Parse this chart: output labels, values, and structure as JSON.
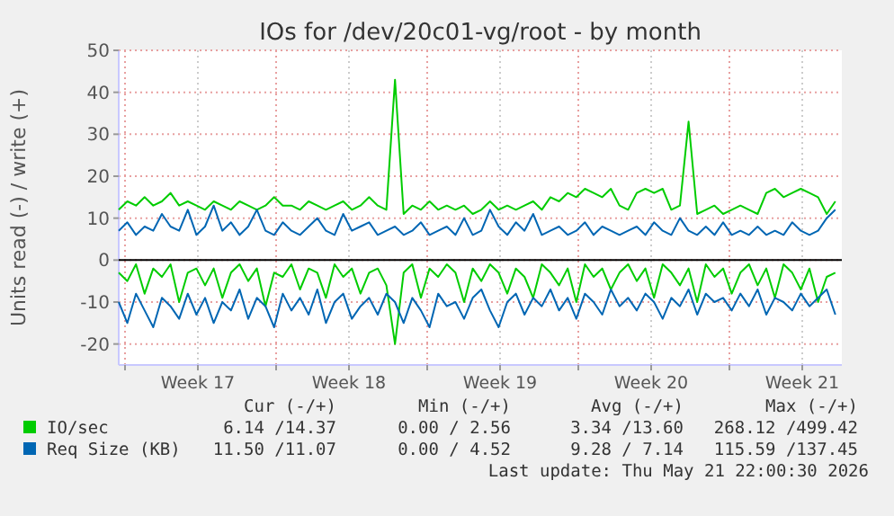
{
  "chart_data": {
    "type": "line",
    "title": "IOs for /dev/20c01-vg/root - by month",
    "ylabel": "Units read (-) / write (+)",
    "x": [
      "2026-04-18T10:00",
      "2026-04-18T19:36",
      "2026-04-19T05:12",
      "2026-04-19T14:48",
      "2026-04-20T00:24",
      "2026-04-20T10:00",
      "2026-04-20T19:36",
      "2026-04-21T05:12",
      "2026-04-21T14:48",
      "2026-04-22T00:24",
      "2026-04-22T10:00",
      "2026-04-22T19:36",
      "2026-04-23T05:12",
      "2026-04-23T14:48",
      "2026-04-24T00:24",
      "2026-04-24T10:00",
      "2026-04-24T19:36",
      "2026-04-25T05:12",
      "2026-04-25T14:48",
      "2026-04-26T00:24",
      "2026-04-26T10:00",
      "2026-04-26T19:36",
      "2026-04-27T05:12",
      "2026-04-27T14:48",
      "2026-04-28T00:24",
      "2026-04-28T10:00",
      "2026-04-28T19:36",
      "2026-04-29T05:12",
      "2026-04-29T14:48",
      "2026-04-30T00:24",
      "2026-04-30T10:00",
      "2026-04-30T19:36",
      "2026-05-01T05:12",
      "2026-05-01T14:48",
      "2026-05-02T00:24",
      "2026-05-02T10:00",
      "2026-05-02T19:36",
      "2026-05-03T05:12",
      "2026-05-03T14:48",
      "2026-05-04T00:24",
      "2026-05-04T10:00",
      "2026-05-04T19:36",
      "2026-05-05T05:12",
      "2026-05-05T14:48",
      "2026-05-06T00:24",
      "2026-05-06T10:00",
      "2026-05-06T19:36",
      "2026-05-07T05:12",
      "2026-05-07T14:48",
      "2026-05-08T00:24",
      "2026-05-08T10:00",
      "2026-05-08T19:36",
      "2026-05-09T05:12",
      "2026-05-09T14:48",
      "2026-05-10T00:24",
      "2026-05-10T10:00",
      "2026-05-10T19:36",
      "2026-05-11T05:12",
      "2026-05-11T14:48",
      "2026-05-12T00:24",
      "2026-05-12T10:00",
      "2026-05-12T19:36",
      "2026-05-13T05:12",
      "2026-05-13T14:48",
      "2026-05-14T00:24",
      "2026-05-14T10:00",
      "2026-05-14T19:36",
      "2026-05-15T05:12",
      "2026-05-15T14:48",
      "2026-05-16T00:24",
      "2026-05-16T10:00",
      "2026-05-16T19:36",
      "2026-05-17T05:12",
      "2026-05-17T14:48",
      "2026-05-18T00:24",
      "2026-05-18T10:00",
      "2026-05-18T19:36",
      "2026-05-19T05:12",
      "2026-05-19T14:48",
      "2026-05-20T00:24",
      "2026-05-20T10:00",
      "2026-05-20T19:36",
      "2026-05-21T05:12",
      "2026-05-21T14:48"
    ],
    "series": [
      {
        "name": "IO/sec",
        "color": "#00cc00",
        "values": [
          12,
          14,
          13,
          15,
          13,
          14,
          16,
          13,
          14,
          13,
          12,
          14,
          13,
          12,
          14,
          13,
          12,
          13,
          15,
          13,
          13,
          12,
          14,
          13,
          12,
          13,
          14,
          12,
          13,
          15,
          13,
          12,
          43,
          11,
          13,
          12,
          14,
          12,
          13,
          12,
          13,
          11,
          12,
          14,
          12,
          13,
          12,
          13,
          14,
          12,
          15,
          14,
          16,
          15,
          17,
          16,
          15,
          17,
          13,
          12,
          16,
          17,
          16,
          17,
          12,
          13,
          33,
          11,
          12,
          13,
          11,
          12,
          13,
          12,
          11,
          16,
          17,
          15,
          16,
          17,
          16,
          15,
          11,
          14
        ]
      },
      {
        "name": "Req Size (KB)",
        "color": "#0066b3",
        "values": [
          7,
          9,
          6,
          8,
          7,
          11,
          8,
          7,
          12,
          6,
          8,
          13,
          7,
          9,
          6,
          8,
          12,
          7,
          6,
          9,
          7,
          6,
          8,
          10,
          7,
          6,
          11,
          7,
          8,
          9,
          6,
          7,
          8,
          6,
          7,
          9,
          6,
          7,
          8,
          6,
          10,
          6,
          7,
          12,
          8,
          6,
          9,
          7,
          11,
          6,
          7,
          8,
          6,
          7,
          9,
          6,
          8,
          7,
          6,
          7,
          8,
          6,
          9,
          7,
          6,
          10,
          7,
          6,
          8,
          6,
          9,
          6,
          7,
          6,
          8,
          6,
          7,
          6,
          9,
          7,
          6,
          7,
          10,
          12
        ]
      },
      {
        "color": "#00cc00",
        "values": [
          -3,
          -5,
          -1,
          -8,
          -2,
          -4,
          -1,
          -10,
          -3,
          -2,
          -6,
          -2,
          -9,
          -3,
          -1,
          -5,
          -2,
          -11,
          -3,
          -4,
          -1,
          -7,
          -2,
          -3,
          -9,
          -1,
          -4,
          -2,
          -8,
          -3,
          -2,
          -6,
          -20,
          -3,
          -1,
          -9,
          -2,
          -4,
          -1,
          -3,
          -10,
          -2,
          -5,
          -1,
          -3,
          -8,
          -2,
          -4,
          -9,
          -1,
          -3,
          -6,
          -2,
          -10,
          -1,
          -4,
          -2,
          -7,
          -3,
          -1,
          -5,
          -2,
          -9,
          -1,
          -3,
          -6,
          -2,
          -10,
          -1,
          -4,
          -2,
          -8,
          -3,
          -1,
          -6,
          -2,
          -9,
          -1,
          -3,
          -7,
          -2,
          -10,
          -4,
          -3
        ]
      },
      {
        "color": "#0066b3",
        "values": [
          -10,
          -15,
          -8,
          -12,
          -16,
          -9,
          -11,
          -14,
          -8,
          -13,
          -9,
          -15,
          -10,
          -12,
          -7,
          -14,
          -9,
          -11,
          -16,
          -8,
          -12,
          -9,
          -13,
          -7,
          -15,
          -10,
          -8,
          -14,
          -11,
          -9,
          -13,
          -8,
          -10,
          -15,
          -9,
          -12,
          -16,
          -8,
          -11,
          -10,
          -14,
          -9,
          -7,
          -12,
          -16,
          -10,
          -8,
          -13,
          -9,
          -11,
          -7,
          -12,
          -9,
          -14,
          -8,
          -10,
          -13,
          -7,
          -11,
          -9,
          -12,
          -8,
          -10,
          -14,
          -9,
          -11,
          -7,
          -13,
          -8,
          -10,
          -9,
          -12,
          -8,
          -11,
          -7,
          -13,
          -9,
          -10,
          -12,
          -8,
          -11,
          -9,
          -7,
          -13
        ]
      }
    ],
    "xlim": [
      "2026-04-18T10:00",
      "2026-05-21T22:00"
    ],
    "xticks": [
      {
        "value": "2026-04-18T17:00",
        "label": null
      },
      {
        "value": "2026-04-22T02:00",
        "label": "Week 17"
      },
      {
        "value": "2026-04-25T17:00",
        "label": null
      },
      {
        "value": "2026-04-29T02:00",
        "label": "Week 18"
      },
      {
        "value": "2026-05-02T17:00",
        "label": null
      },
      {
        "value": "2026-05-06T02:00",
        "label": "Week 19"
      },
      {
        "value": "2026-05-09T17:00",
        "label": null
      },
      {
        "value": "2026-05-13T02:00",
        "label": "Week 20"
      },
      {
        "value": "2026-05-16T17:00",
        "label": null
      },
      {
        "value": "2026-05-20T02:00",
        "label": "Week 21"
      }
    ],
    "ylim": [
      -25,
      50
    ],
    "yticks": [
      -20,
      -10,
      0,
      10,
      20,
      30,
      40,
      50
    ],
    "grid": true,
    "legend": "bottom",
    "ref_lines": [
      {
        "axis": "y",
        "value": 0,
        "color": "#000000"
      }
    ],
    "annotations": [
      "Cur (-/+)",
      "Min (-/+)",
      "Avg (-/+)",
      "Max (-/+)",
      "6.14 /14.37",
      "0.00 / 2.56",
      "3.34 /13.60",
      "268.12 /499.42",
      "11.50 /11.07",
      "0.00 / 4.52",
      "9.28 / 7.14",
      "115.59 /137.45",
      "Last update: Thu May 21 22:00:30 2026"
    ]
  }
}
